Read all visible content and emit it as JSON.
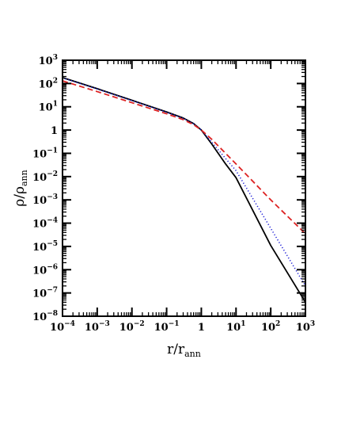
{
  "chart_data": {
    "type": "line",
    "title": "",
    "xlabel": "r/r_ann",
    "ylabel": "ρ/ρ_ann",
    "xlabel_parts": {
      "main": "r/r",
      "sub": "ann"
    },
    "ylabel_parts": {
      "main": "ρ/ρ",
      "sub": "ann"
    },
    "xscale": "log",
    "yscale": "log",
    "xlim": [
      0.0001,
      1000
    ],
    "ylim": [
      1e-08,
      1000
    ],
    "grid": false,
    "legend": "none",
    "x_ticks": [
      {
        "value": 0.0001,
        "base": "10",
        "exp": "−4"
      },
      {
        "value": 0.001,
        "base": "10",
        "exp": "−3"
      },
      {
        "value": 0.01,
        "base": "10",
        "exp": "−2"
      },
      {
        "value": 0.1,
        "base": "10",
        "exp": "−1"
      },
      {
        "value": 1,
        "base": "1",
        "exp": ""
      },
      {
        "value": 10,
        "base": "10",
        "exp": "1"
      },
      {
        "value": 100,
        "base": "10",
        "exp": "2"
      },
      {
        "value": 1000,
        "base": "10",
        "exp": "3"
      }
    ],
    "y_ticks": [
      {
        "value": 1000,
        "base": "10",
        "exp": "3"
      },
      {
        "value": 100,
        "base": "10",
        "exp": "2"
      },
      {
        "value": 10,
        "base": "10",
        "exp": "1"
      },
      {
        "value": 1,
        "base": "1",
        "exp": ""
      },
      {
        "value": 0.1,
        "base": "10",
        "exp": "−1"
      },
      {
        "value": 0.01,
        "base": "10",
        "exp": "−2"
      },
      {
        "value": 0.001,
        "base": "10",
        "exp": "−3"
      },
      {
        "value": 0.0001,
        "base": "10",
        "exp": "−4"
      },
      {
        "value": 1e-05,
        "base": "10",
        "exp": "−5"
      },
      {
        "value": 1e-06,
        "base": "10",
        "exp": "−6"
      },
      {
        "value": 1e-07,
        "base": "10",
        "exp": "−7"
      },
      {
        "value": 1e-08,
        "base": "10",
        "exp": "−8"
      }
    ],
    "series": [
      {
        "style": "solid",
        "color": "#000000",
        "x": [
          0.0001,
          0.001,
          0.01,
          0.1,
          0.3,
          0.6,
          1,
          2,
          5,
          10,
          100,
          1000
        ],
        "y": [
          180,
          60,
          19,
          6.0,
          3.3,
          1.9,
          1.0,
          0.25,
          0.035,
          0.009,
          1.1e-05,
          4e-08
        ]
      },
      {
        "style": "dotted",
        "color": "#1f1fd6",
        "x": [
          0.0001,
          0.001,
          0.01,
          0.1,
          0.3,
          0.6,
          1,
          2,
          5,
          10,
          100,
          1000
        ],
        "y": [
          175,
          58,
          18.5,
          5.8,
          3.2,
          1.85,
          1.0,
          0.3,
          0.06,
          0.018,
          6e-05,
          2e-07
        ]
      },
      {
        "style": "dashed",
        "color": "#dd2222",
        "x": [
          0.0001,
          0.001,
          0.01,
          0.1,
          0.3,
          0.6,
          1,
          2,
          5,
          10,
          100,
          1000
        ],
        "y": [
          130,
          45,
          15,
          5.0,
          2.8,
          1.7,
          1.0,
          0.4,
          0.1,
          0.035,
          0.001,
          3.5e-05
        ]
      }
    ]
  }
}
